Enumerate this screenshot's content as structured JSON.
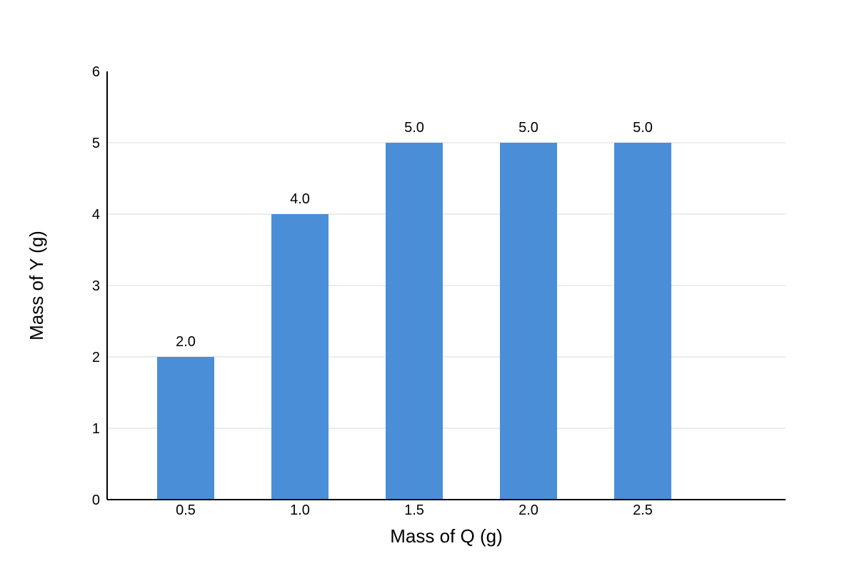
{
  "chart_data": {
    "type": "bar",
    "categories": [
      "0.5",
      "1.0",
      "1.5",
      "2.0",
      "2.5"
    ],
    "values": [
      2.0,
      4.0,
      5.0,
      5.0,
      5.0
    ],
    "data_labels": [
      "2.0",
      "4.0",
      "5.0",
      "5.0",
      "5.0"
    ],
    "xlabel": "Mass of Q (g)",
    "ylabel": "Mass of Y (g)",
    "ylim": [
      0,
      6
    ],
    "yticks": [
      0,
      1,
      2,
      3,
      4,
      5,
      6
    ],
    "grid": true,
    "bar_color": "#4a8ed8",
    "grid_color": "#d9d9d9",
    "axis_color": "#000000"
  }
}
